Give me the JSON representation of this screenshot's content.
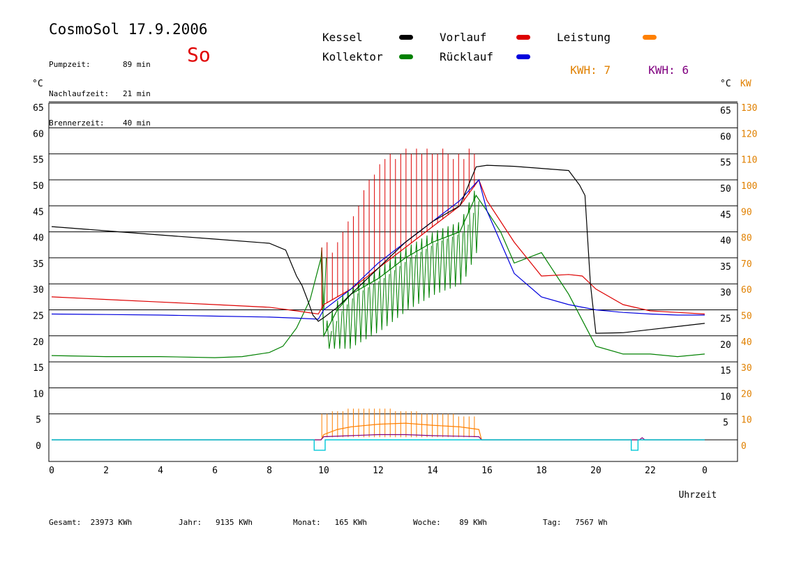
{
  "header": {
    "title": "CosmoSol 17.9.2006",
    "day": "So",
    "stats": [
      {
        "label": "Pumpzeit:",
        "value": "89 min"
      },
      {
        "label": "Nachlaufzeit:",
        "value": "21 min"
      },
      {
        "label": "Brennerzeit:",
        "value": "40 min"
      }
    ]
  },
  "legend": [
    {
      "label": "Kessel",
      "color": "#000000"
    },
    {
      "label": "Vorlauf",
      "color": "#dd0000"
    },
    {
      "label": "Leistung",
      "color": "#ff8000"
    },
    {
      "label": "Kollektor",
      "color": "#008000"
    },
    {
      "label": "Rücklauf",
      "color": "#0000dd"
    }
  ],
  "kwh": [
    {
      "label": "KWH:",
      "value": "7",
      "color": "#e08000"
    },
    {
      "label": "KWH:",
      "value": "6",
      "color": "#800080"
    }
  ],
  "footer": [
    {
      "label": "Gesamt:",
      "value": "23973 KWh"
    },
    {
      "label": "Jahr:",
      "value": "9135 KWh"
    },
    {
      "label": "Monat:",
      "value": "165 KWh"
    },
    {
      "label": "Woche:",
      "value": "89 KWh"
    },
    {
      "label": "Tag:",
      "value": "7567 Wh"
    }
  ],
  "chart_data": {
    "type": "line",
    "xlabel": "Uhrzeit",
    "ylabel_left": "°C",
    "ylabel_right": [
      "°C",
      "KW"
    ],
    "x_ticks": [
      "0",
      "2",
      "4",
      "6",
      "8",
      "10",
      "12",
      "14",
      "16",
      "18",
      "20",
      "22",
      "0"
    ],
    "y_ticks_left": [
      0,
      5,
      10,
      15,
      20,
      25,
      30,
      35,
      40,
      45,
      50,
      55,
      60,
      65
    ],
    "y_ticks_right_temp": [
      5,
      10,
      15,
      20,
      25,
      30,
      35,
      40,
      45,
      50,
      55,
      60,
      65
    ],
    "y_ticks_right_kw": [
      0,
      10,
      20,
      30,
      40,
      50,
      60,
      70,
      80,
      90,
      100,
      110,
      120,
      130
    ],
    "xlim": [
      0,
      24
    ],
    "ylim": [
      -4,
      65
    ],
    "series": [
      {
        "name": "Kessel",
        "color": "#000000",
        "x": [
          0,
          2,
          4,
          6,
          8,
          8.6,
          8.8,
          9.0,
          9.2,
          9.4,
          9.6,
          9.8,
          10.0,
          10.5,
          11,
          12,
          13,
          14,
          15,
          15.6,
          16,
          17,
          18,
          19,
          19.4,
          19.6,
          19.8,
          20,
          21,
          22,
          23,
          24
        ],
        "y": [
          41,
          40.2,
          39.4,
          38.6,
          37.8,
          36.5,
          34,
          31.5,
          29.7,
          27,
          24,
          22.8,
          23.5,
          25.5,
          28,
          33,
          38,
          42,
          45,
          52.5,
          52.8,
          52.6,
          52.2,
          51.8,
          49,
          47,
          30,
          20.5,
          20.6,
          21.2,
          21.8,
          22.4
        ]
      },
      {
        "name": "Vorlauf",
        "color": "#dd0000",
        "x": [
          0,
          2,
          4,
          6,
          8,
          9,
          9.8,
          10,
          11,
          12,
          13,
          14,
          15,
          15.7,
          16,
          17,
          18,
          19,
          19.5,
          20,
          21,
          22,
          23,
          24
        ],
        "y": [
          27.5,
          27,
          26.5,
          26,
          25.5,
          24.8,
          24.2,
          26,
          29,
          33,
          37,
          41,
          45,
          50,
          46,
          38,
          31.5,
          31.8,
          31.5,
          29,
          26,
          24.8,
          24.5,
          24.2
        ]
      },
      {
        "name": "Rücklauf",
        "color": "#0000dd",
        "x": [
          0,
          2,
          4,
          6,
          8,
          9,
          9.8,
          10,
          11,
          12,
          13,
          14,
          15,
          15.7,
          16,
          17,
          18,
          19,
          20,
          21,
          22,
          23,
          24
        ],
        "y": [
          24.2,
          24.1,
          24,
          23.8,
          23.6,
          23.4,
          23.2,
          25,
          29,
          34,
          38,
          42,
          46,
          50,
          44,
          32,
          27.5,
          26,
          25,
          24.5,
          24.2,
          24,
          24
        ]
      },
      {
        "name": "Kollektor",
        "color": "#008000",
        "x": [
          0,
          2,
          4,
          6,
          7,
          8,
          8.5,
          9,
          9.5,
          9.9,
          10,
          10.5,
          11,
          12,
          13,
          14,
          15,
          15.6,
          16,
          16.5,
          17,
          17.5,
          18,
          19,
          20,
          21,
          22,
          23,
          24
        ],
        "y": [
          16.2,
          16,
          16,
          15.8,
          16,
          16.8,
          18,
          21.5,
          27,
          35,
          20,
          25,
          28,
          31,
          35,
          38,
          40,
          47,
          44,
          40,
          34,
          35,
          36,
          28,
          18,
          16.5,
          16.5,
          16,
          16.5
        ]
      },
      {
        "name": "Leistung",
        "color": "#ff8000",
        "x": [
          0,
          9.9,
          10,
          10.5,
          11,
          12,
          13,
          14,
          15,
          15.7,
          15.8,
          24
        ],
        "y": [
          0,
          0,
          1,
          2,
          2.5,
          3,
          3.2,
          2.8,
          2.5,
          2,
          0,
          0
        ]
      },
      {
        "name": "KWH-Tag",
        "color": "#800080",
        "x": [
          0,
          9.9,
          10,
          11,
          12,
          13,
          14,
          15,
          15.7,
          15.8,
          21.6,
          21.7,
          21.8,
          24
        ],
        "y": [
          0,
          0,
          0.6,
          0.8,
          1,
          1,
          0.8,
          0.7,
          0.6,
          0,
          0,
          0.4,
          0,
          0
        ]
      },
      {
        "name": "Pumpe",
        "color": "#00c8d8",
        "x": [
          0,
          9.65,
          9.65,
          10.05,
          10.05,
          21.3,
          21.3,
          21.55,
          21.55,
          24
        ],
        "y": [
          0,
          0,
          -2,
          -2,
          0,
          0,
          -2,
          -2,
          0,
          0
        ]
      }
    ],
    "spikes": {
      "x_start": 9.9,
      "x_end": 15.7,
      "count": 30,
      "vorlauf_peaks": [
        37,
        38,
        36,
        38,
        40,
        42,
        43,
        45,
        48,
        50,
        51,
        53,
        54,
        55,
        54,
        55,
        56,
        55,
        56,
        55,
        56,
        55,
        55,
        56,
        55,
        54,
        55,
        54,
        56,
        55
      ],
      "leistung_peaks": [
        5,
        5,
        5.5,
        5.5,
        5.5,
        6,
        6,
        6,
        6,
        6,
        6,
        6,
        6,
        6,
        5.5,
        5.5,
        5.5,
        5.5,
        5.5,
        5,
        5,
        5,
        5,
        5,
        5,
        5,
        4.5,
        4.5,
        4.5,
        4.5
      ]
    }
  }
}
